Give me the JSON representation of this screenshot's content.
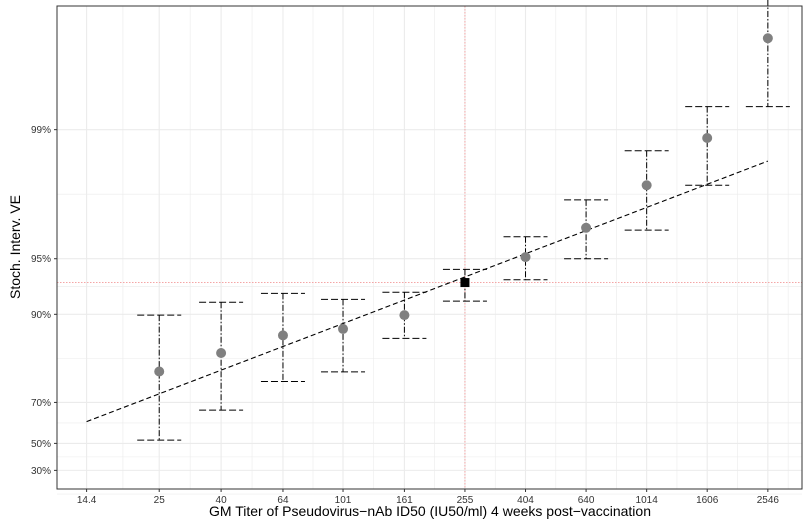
{
  "chart_data": {
    "type": "scatter",
    "title": "",
    "xlabel": "GM Titer of Pseudovirus−nAb ID50 (IU50/ml) 4 weeks post−vaccination",
    "ylabel": "Stoch. Interv. VE",
    "x_scale": "log",
    "y_scale": "log(1 - VE)",
    "xlim": [
      11.5,
      3300
    ],
    "ylim_risk": [
      0.00214,
      0.883
    ],
    "x_ticks": [
      "14.4",
      "25",
      "40",
      "64",
      "101",
      "161",
      "255",
      "404",
      "640",
      "1014",
      "1606",
      "2546"
    ],
    "y_ticks": [
      {
        "label": "30%",
        "value": 0.3
      },
      {
        "label": "50%",
        "value": 0.5
      },
      {
        "label": "70%",
        "value": 0.7
      },
      {
        "label": "90%",
        "value": 0.9
      },
      {
        "label": "95%",
        "value": 0.95
      },
      {
        "label": "99%",
        "value": 0.99
      }
    ],
    "grid": true,
    "points": [
      {
        "x": 25,
        "ve": 0.796,
        "lower": 0.52,
        "upper": 0.899
      },
      {
        "x": 40,
        "ve": 0.838,
        "lower": 0.67,
        "upper": 0.914
      },
      {
        "x": 64,
        "ve": 0.87,
        "lower": 0.769,
        "upper": 0.923
      },
      {
        "x": 101,
        "ve": 0.88,
        "lower": 0.795,
        "upper": 0.917
      },
      {
        "x": 161,
        "ve": 0.899,
        "lower": 0.865,
        "upper": 0.924
      },
      {
        "x": 404,
        "ve": 0.951,
        "lower": 0.935,
        "upper": 0.962
      },
      {
        "x": 640,
        "ve": 0.966,
        "lower": 0.95,
        "upper": 0.976
      },
      {
        "x": 1014,
        "ve": 0.98,
        "lower": 0.965,
        "upper": 0.987
      },
      {
        "x": 1606,
        "ve": 0.9889,
        "lower": 0.98,
        "upper": 0.9925
      },
      {
        "x": 2546,
        "ve": 0.9968,
        "lower": 0.9925,
        "upper": 0.99829
      }
    ],
    "reference_point": {
      "x": 255,
      "ve": 0.9327,
      "lower": 0.9152,
      "upper": 0.9429
    },
    "trend_line": [
      {
        "x": 14.4,
        "ve": 0.619
      },
      {
        "x": 2546,
        "ve": 0.9852
      }
    ],
    "reference_lines": {
      "x": 255,
      "ve": 0.9327,
      "color": "#f4a6a6"
    },
    "colors": {
      "point": "#808080",
      "reference_point": "#000000",
      "grid": "#ebebeb",
      "panel_border": "#333333"
    }
  }
}
